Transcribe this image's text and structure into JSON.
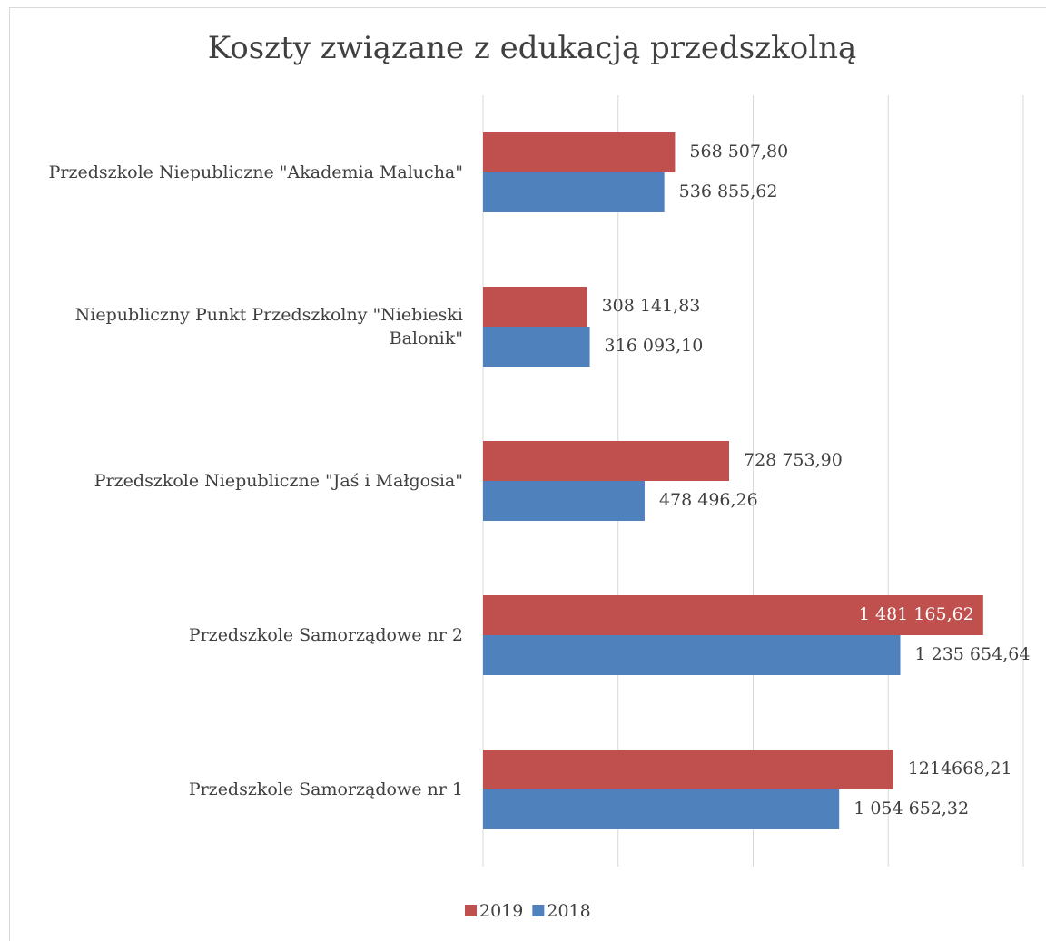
{
  "chart_data": {
    "type": "bar",
    "orientation": "horizontal",
    "title": "Koszty związane z edukacją przedszkolną",
    "categories": [
      "Przedszkole Niepubliczne \"Akademia Malucha\"",
      "Niepubliczny Punkt Przedszkolny \"Niebieski Balonik\"",
      "Przedszkole Niepubliczne \"Jaś i Małgosia\"",
      "Przedszkole Samorządowe nr 2",
      "Przedszkole Samorządowe nr 1"
    ],
    "series": [
      {
        "name": "2019",
        "color": "#c0504d",
        "values": [
          568507.8,
          308141.83,
          728753.9,
          1481165.62,
          1214668.21
        ],
        "value_labels": [
          "568 507,80",
          "308 141,83",
          "728 753,90",
          "1 481 165,62",
          "1214668,21"
        ]
      },
      {
        "name": "2018",
        "color": "#4f81bd",
        "values": [
          536855.62,
          316093.1,
          478496.26,
          1235654.64,
          1054652.32
        ],
        "value_labels": [
          "536 855,62",
          "316 093,10",
          "478 496,26",
          "1 235 654,64",
          "1 054 652,32"
        ]
      }
    ],
    "xlim": [
      0,
      1600000
    ],
    "xticks": [
      0,
      400000,
      800000,
      1200000,
      1600000
    ],
    "grid": true,
    "legend": "bottom"
  }
}
